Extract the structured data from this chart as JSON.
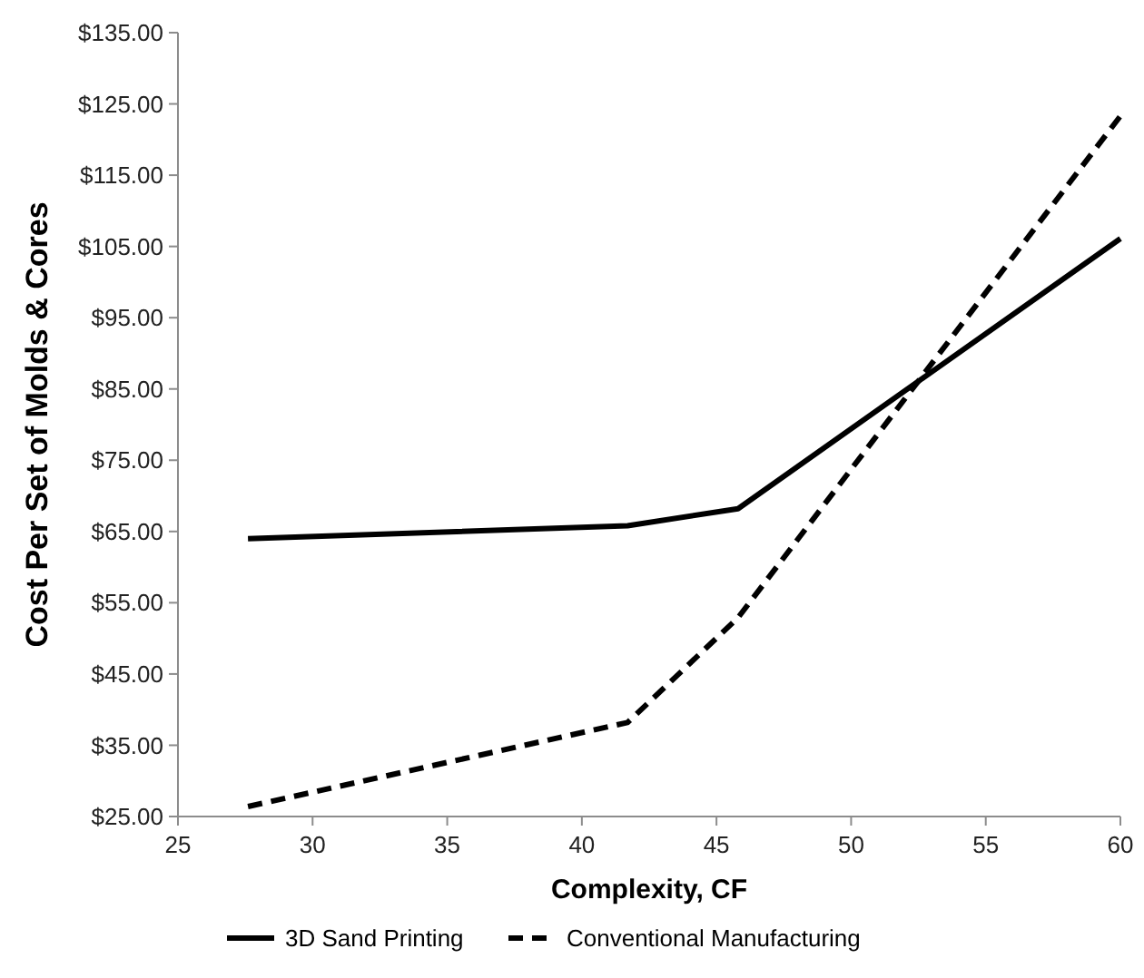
{
  "chart_data": {
    "type": "line",
    "xlabel": "Complexity, CF",
    "ylabel": "Cost Per Set of Molds & Cores",
    "x": [
      27.6,
      41.7,
      45.8,
      60
    ],
    "series": [
      {
        "name": "3D Sand Printing",
        "color": "#000000",
        "line_style": "solid",
        "values": [
          64.0,
          65.8,
          68.2,
          106.1
        ]
      },
      {
        "name": "Conventional Manufacturing",
        "color": "#000000",
        "line_style": "dashed",
        "values": [
          26.4,
          38.2,
          52.9,
          123.3
        ]
      }
    ],
    "xlim": [
      25,
      60
    ],
    "xticks": [
      25,
      30,
      35,
      40,
      45,
      50,
      55,
      60
    ],
    "ylim": [
      25,
      135
    ],
    "yticks": [
      {
        "value": 25,
        "label": "$25.00"
      },
      {
        "value": 35,
        "label": "$35.00"
      },
      {
        "value": 45,
        "label": "$45.00"
      },
      {
        "value": 55,
        "label": "$55.00"
      },
      {
        "value": 65,
        "label": "$65.00"
      },
      {
        "value": 75,
        "label": "$75.00"
      },
      {
        "value": 85,
        "label": "$85.00"
      },
      {
        "value": 95,
        "label": "$95.00"
      },
      {
        "value": 105,
        "label": "$105.00"
      },
      {
        "value": 115,
        "label": "$115.00"
      },
      {
        "value": 125,
        "label": "$125.00"
      },
      {
        "value": 135,
        "label": "$135.00"
      }
    ],
    "grid": false,
    "legend": "bottom",
    "marker": "none"
  }
}
